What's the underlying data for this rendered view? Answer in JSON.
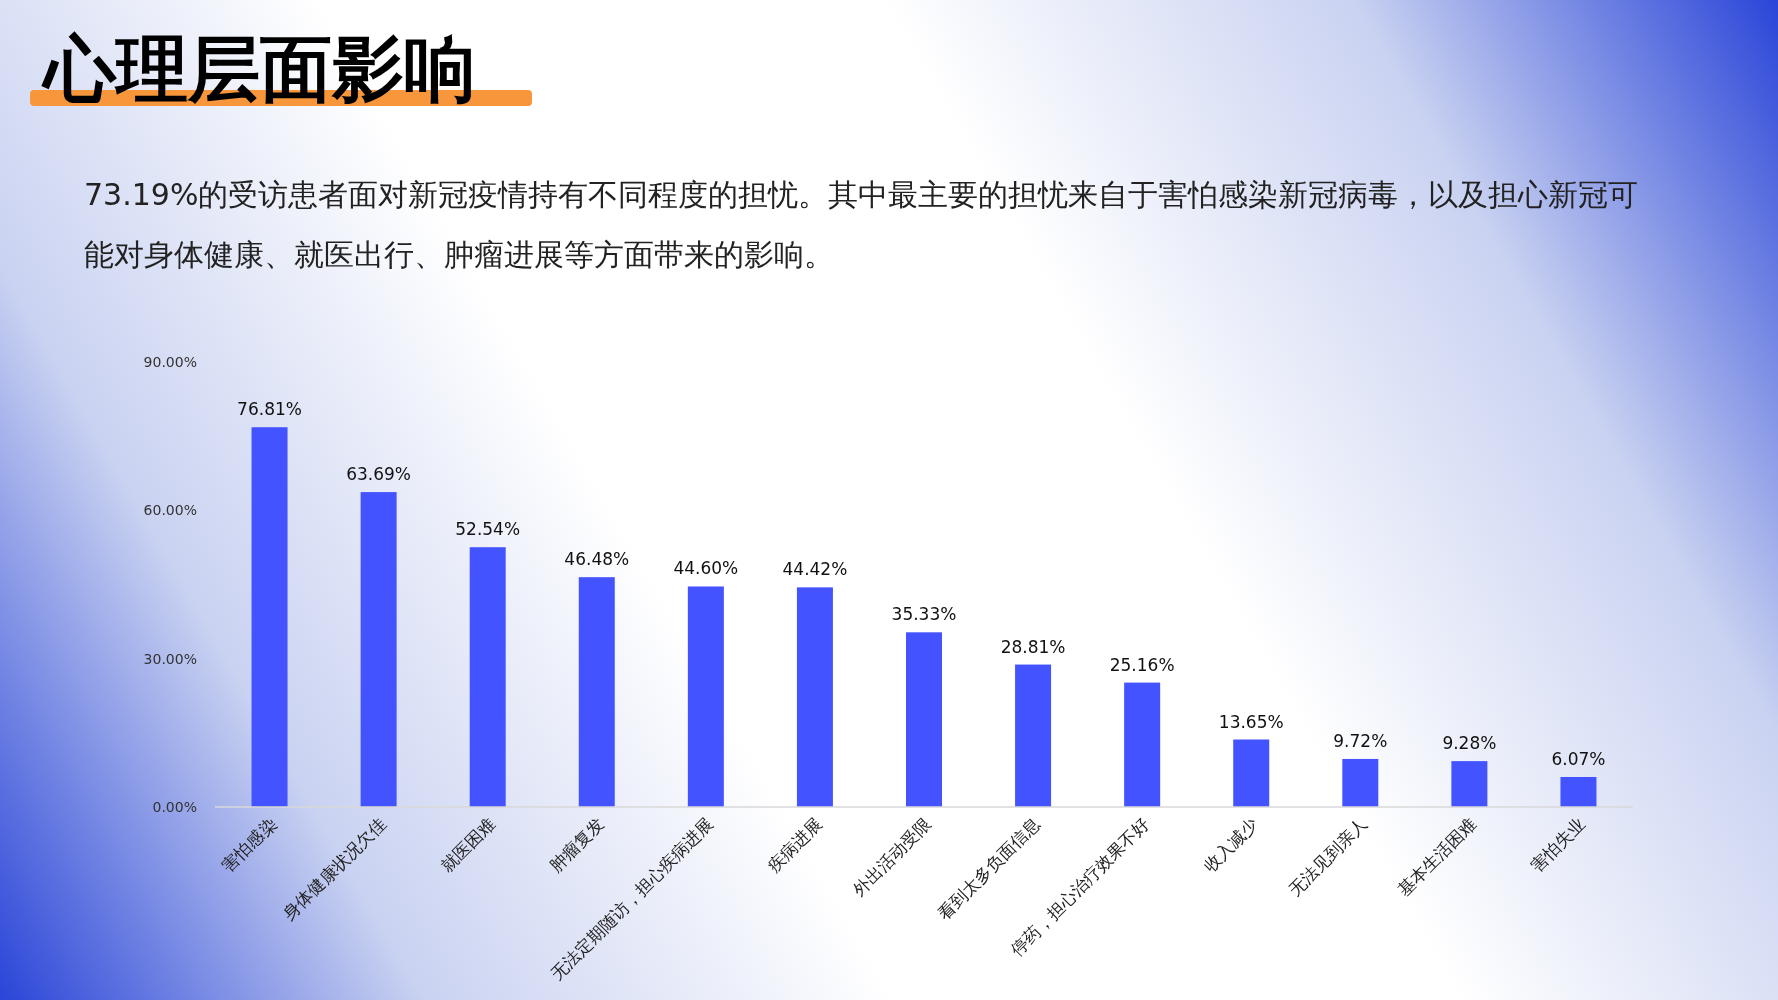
{
  "chart_data": {
    "type": "bar",
    "title": "心理层面影响",
    "subtitle": "73.19%的受访患者面对新冠疫情持有不同程度的担忧。其中最主要的担忧来自于害怕感染新冠病毒，以及担心新冠可能对身体健康、就医出行、肿瘤进展等方面带来的影响。",
    "categories": [
      "害怕感染",
      "身体健康状况欠佳",
      "就医困难",
      "肿瘤复发",
      "无法定期随访，担心疾病进展",
      "疾病进展",
      "外出活动受限",
      "看到太多负面信息",
      "停药，担心治疗效果不好",
      "收入减少",
      "无法见到亲人",
      "基本生活困难",
      "害怕失业"
    ],
    "values": [
      76.81,
      63.69,
      52.54,
      46.48,
      44.6,
      44.42,
      35.33,
      28.81,
      25.16,
      13.65,
      9.72,
      9.28,
      6.07
    ],
    "value_labels": [
      "76.81%",
      "63.69%",
      "52.54%",
      "46.48%",
      "44.60%",
      "44.42%",
      "35.33%",
      "28.81%",
      "25.16%",
      "13.65%",
      "9.72%",
      "9.28%",
      "6.07%"
    ],
    "color": "#4353ff",
    "ylim": [
      0,
      90
    ],
    "yticks": [
      {
        "value": 0,
        "label": "0.00%"
      },
      {
        "value": 30,
        "label": "30.00%"
      },
      {
        "value": 60,
        "label": "60.00%"
      },
      {
        "value": 90,
        "label": "90.00%"
      }
    ],
    "grid": false
  }
}
